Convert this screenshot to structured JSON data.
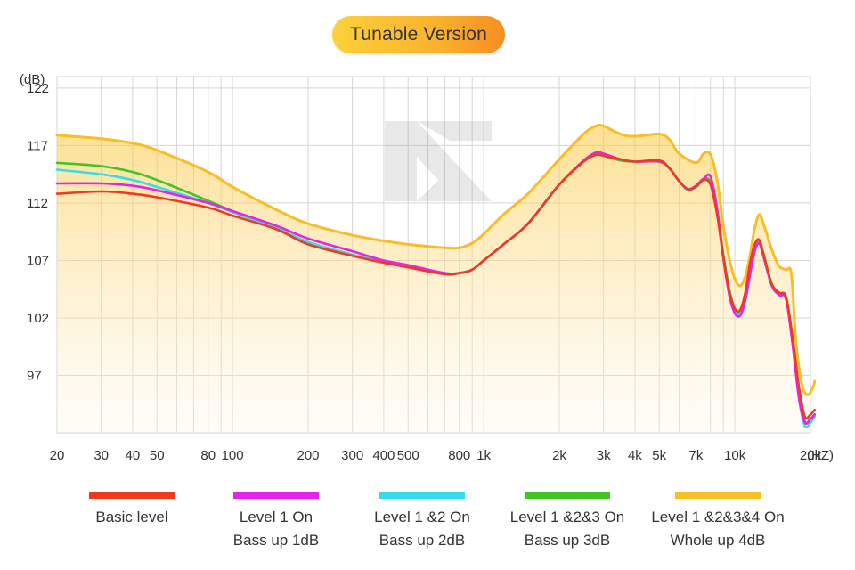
{
  "title": "Tunable Version",
  "chart_data": {
    "type": "line",
    "x_scale": "log",
    "xlim": [
      20,
      20000
    ],
    "ylim": [
      92,
      123
    ],
    "y_unit": "(dB)",
    "x_unit": "(HZ)",
    "y_ticks": [
      {
        "v": 122,
        "label": "122"
      },
      {
        "v": 117,
        "label": "117"
      },
      {
        "v": 112,
        "label": "112"
      },
      {
        "v": 107,
        "label": "107"
      },
      {
        "v": 102,
        "label": "102"
      },
      {
        "v": 97,
        "label": "97"
      }
    ],
    "x_ticks": [
      {
        "v": 20,
        "label": "20"
      },
      {
        "v": 30,
        "label": "30"
      },
      {
        "v": 40,
        "label": "40"
      },
      {
        "v": 50,
        "label": "50"
      },
      {
        "v": 80,
        "label": "80"
      },
      {
        "v": 100,
        "label": "100"
      },
      {
        "v": 200,
        "label": "200"
      },
      {
        "v": 300,
        "label": "300"
      },
      {
        "v": 400,
        "label": "400"
      },
      {
        "v": 500,
        "label": "500"
      },
      {
        "v": 800,
        "label": "800"
      },
      {
        "v": 1000,
        "label": "1k"
      },
      {
        "v": 2000,
        "label": "2k"
      },
      {
        "v": 3000,
        "label": "3k"
      },
      {
        "v": 4000,
        "label": "4k"
      },
      {
        "v": 5000,
        "label": "5k"
      },
      {
        "v": 7000,
        "label": "7k"
      },
      {
        "v": 10000,
        "label": "10k"
      },
      {
        "v": 20000,
        "label": "20k"
      }
    ],
    "grid_x": [
      20,
      30,
      40,
      50,
      60,
      70,
      80,
      90,
      100,
      200,
      300,
      400,
      500,
      600,
      700,
      800,
      900,
      1000,
      2000,
      3000,
      4000,
      5000,
      6000,
      7000,
      8000,
      9000,
      10000,
      20000
    ],
    "series": [
      {
        "name": "Level 1 &2&3&4 On Whole up 4dB",
        "color": "#f9bd25",
        "points": [
          [
            20,
            117.9
          ],
          [
            30,
            117.6
          ],
          [
            40,
            117.2
          ],
          [
            50,
            116.6
          ],
          [
            80,
            114.7
          ],
          [
            100,
            113.4
          ],
          [
            150,
            111.4
          ],
          [
            200,
            110.2
          ],
          [
            300,
            109.2
          ],
          [
            400,
            108.7
          ],
          [
            500,
            108.4
          ],
          [
            700,
            108.1
          ],
          [
            800,
            108.1
          ],
          [
            900,
            108.5
          ],
          [
            1000,
            109.3
          ],
          [
            1200,
            111.0
          ],
          [
            1500,
            112.8
          ],
          [
            2000,
            115.8
          ],
          [
            2500,
            118.0
          ],
          [
            2800,
            118.7
          ],
          [
            3000,
            118.7
          ],
          [
            3500,
            118.0
          ],
          [
            4000,
            117.8
          ],
          [
            5000,
            118.0
          ],
          [
            5500,
            117.5
          ],
          [
            6000,
            116.3
          ],
          [
            7000,
            115.5
          ],
          [
            7500,
            116.3
          ],
          [
            8000,
            116.2
          ],
          [
            8500,
            114.0
          ],
          [
            9000,
            110.0
          ],
          [
            9500,
            107.2
          ],
          [
            10000,
            105.4
          ],
          [
            10500,
            104.8
          ],
          [
            11000,
            105.6
          ],
          [
            11500,
            107.5
          ],
          [
            12000,
            109.8
          ],
          [
            12500,
            111.0
          ],
          [
            13000,
            110.2
          ],
          [
            14000,
            108.0
          ],
          [
            15000,
            106.5
          ],
          [
            16000,
            106.2
          ],
          [
            16800,
            105.8
          ],
          [
            17500,
            100.0
          ],
          [
            18500,
            96.2
          ],
          [
            19500,
            95.3
          ],
          [
            20500,
            96.0
          ],
          [
            21000,
            96.5
          ]
        ]
      },
      {
        "name": "Level 1 &2&3 On Bass up 3dB",
        "color": "#43c425",
        "points": [
          [
            20,
            115.5
          ],
          [
            30,
            115.2
          ],
          [
            40,
            114.7
          ],
          [
            50,
            114.0
          ],
          [
            80,
            112.2
          ],
          [
            100,
            111.3
          ],
          [
            150,
            109.8
          ],
          [
            200,
            108.6
          ],
          [
            300,
            107.5
          ],
          [
            400,
            106.9
          ],
          [
            500,
            106.5
          ],
          [
            700,
            105.9
          ],
          [
            800,
            105.9
          ],
          [
            900,
            106.2
          ],
          [
            1000,
            107.0
          ],
          [
            1200,
            108.4
          ],
          [
            1500,
            110.2
          ],
          [
            2000,
            113.6
          ],
          [
            2500,
            115.6
          ],
          [
            2800,
            116.2
          ],
          [
            3000,
            116.1
          ],
          [
            3500,
            115.7
          ],
          [
            4000,
            115.6
          ],
          [
            5000,
            115.6
          ],
          [
            5500,
            115.0
          ],
          [
            6000,
            113.9
          ],
          [
            6500,
            113.2
          ],
          [
            7000,
            113.5
          ],
          [
            7500,
            114.1
          ],
          [
            8000,
            113.8
          ],
          [
            8500,
            111.2
          ],
          [
            9000,
            107.5
          ],
          [
            9500,
            104.5
          ],
          [
            10000,
            102.8
          ],
          [
            10500,
            102.5
          ],
          [
            11000,
            104.0
          ],
          [
            11500,
            106.5
          ],
          [
            12000,
            108.2
          ],
          [
            12500,
            108.7
          ],
          [
            13000,
            107.5
          ],
          [
            14000,
            105.0
          ],
          [
            15000,
            104.2
          ],
          [
            16000,
            103.8
          ],
          [
            17000,
            100.0
          ],
          [
            18000,
            95.5
          ],
          [
            19000,
            93.0
          ],
          [
            20000,
            93.2
          ],
          [
            21000,
            93.6
          ]
        ]
      },
      {
        "name": "Level 1 &2 On Bass up 2dB",
        "color": "#33ddea",
        "points": [
          [
            20,
            114.9
          ],
          [
            30,
            114.5
          ],
          [
            40,
            114.0
          ],
          [
            50,
            113.4
          ],
          [
            80,
            112.0
          ],
          [
            100,
            111.2
          ],
          [
            150,
            109.8
          ],
          [
            200,
            108.6
          ],
          [
            300,
            107.5
          ],
          [
            400,
            106.9
          ],
          [
            500,
            106.5
          ],
          [
            700,
            105.9
          ],
          [
            800,
            105.9
          ],
          [
            900,
            106.2
          ],
          [
            1000,
            107.0
          ],
          [
            1200,
            108.4
          ],
          [
            1500,
            110.2
          ],
          [
            2000,
            113.6
          ],
          [
            2500,
            115.6
          ],
          [
            2800,
            116.2
          ],
          [
            3000,
            116.2
          ],
          [
            3500,
            115.8
          ],
          [
            4000,
            115.6
          ],
          [
            5000,
            115.6
          ],
          [
            5500,
            115.0
          ],
          [
            6000,
            113.9
          ],
          [
            6500,
            113.1
          ],
          [
            7000,
            113.4
          ],
          [
            7500,
            114.0
          ],
          [
            8000,
            113.6
          ],
          [
            8500,
            111.0
          ],
          [
            9000,
            107.2
          ],
          [
            9500,
            104.3
          ],
          [
            10000,
            102.6
          ],
          [
            10500,
            102.4
          ],
          [
            11000,
            103.9
          ],
          [
            11500,
            106.3
          ],
          [
            12000,
            108.0
          ],
          [
            12500,
            108.5
          ],
          [
            13000,
            107.3
          ],
          [
            14000,
            104.8
          ],
          [
            15000,
            104.0
          ],
          [
            16000,
            103.6
          ],
          [
            17000,
            99.6
          ],
          [
            18000,
            95.0
          ],
          [
            19000,
            92.6
          ],
          [
            20000,
            92.9
          ],
          [
            21000,
            93.4
          ]
        ]
      },
      {
        "name": "Level 1 On Bass up 1dB",
        "color": "#e624e6",
        "points": [
          [
            20,
            113.7
          ],
          [
            30,
            113.7
          ],
          [
            40,
            113.5
          ],
          [
            50,
            113.1
          ],
          [
            80,
            112.0
          ],
          [
            100,
            111.3
          ],
          [
            150,
            110.0
          ],
          [
            200,
            108.9
          ],
          [
            300,
            107.8
          ],
          [
            400,
            107.0
          ],
          [
            500,
            106.6
          ],
          [
            700,
            105.9
          ],
          [
            800,
            105.9
          ],
          [
            900,
            106.2
          ],
          [
            1000,
            107.0
          ],
          [
            1200,
            108.4
          ],
          [
            1500,
            110.2
          ],
          [
            2000,
            113.6
          ],
          [
            2500,
            115.7
          ],
          [
            2800,
            116.4
          ],
          [
            3000,
            116.3
          ],
          [
            3500,
            115.8
          ],
          [
            4000,
            115.6
          ],
          [
            5000,
            115.6
          ],
          [
            5500,
            115.0
          ],
          [
            6000,
            113.9
          ],
          [
            6500,
            113.2
          ],
          [
            7000,
            113.5
          ],
          [
            7500,
            114.1
          ],
          [
            8000,
            114.3
          ],
          [
            8500,
            111.5
          ],
          [
            9000,
            107.2
          ],
          [
            9500,
            104.0
          ],
          [
            10000,
            102.4
          ],
          [
            10500,
            102.2
          ],
          [
            11000,
            103.5
          ],
          [
            11500,
            105.8
          ],
          [
            12000,
            107.8
          ],
          [
            12500,
            108.5
          ],
          [
            13000,
            107.4
          ],
          [
            14000,
            104.9
          ],
          [
            15000,
            104.0
          ],
          [
            16000,
            103.6
          ],
          [
            17000,
            99.6
          ],
          [
            18000,
            95.0
          ],
          [
            19000,
            92.9
          ],
          [
            20000,
            93.2
          ],
          [
            21000,
            93.6
          ]
        ]
      },
      {
        "name": "Basic level",
        "color": "#f03a1f",
        "points": [
          [
            20,
            112.8
          ],
          [
            30,
            113.0
          ],
          [
            40,
            112.8
          ],
          [
            50,
            112.5
          ],
          [
            80,
            111.6
          ],
          [
            100,
            110.9
          ],
          [
            150,
            109.7
          ],
          [
            200,
            108.4
          ],
          [
            300,
            107.4
          ],
          [
            400,
            106.8
          ],
          [
            500,
            106.4
          ],
          [
            700,
            105.8
          ],
          [
            800,
            105.9
          ],
          [
            900,
            106.2
          ],
          [
            1000,
            107.0
          ],
          [
            1200,
            108.4
          ],
          [
            1500,
            110.2
          ],
          [
            2000,
            113.6
          ],
          [
            2500,
            115.6
          ],
          [
            2800,
            116.2
          ],
          [
            3000,
            116.1
          ],
          [
            3500,
            115.8
          ],
          [
            4000,
            115.6
          ],
          [
            5000,
            115.7
          ],
          [
            5500,
            115.0
          ],
          [
            6000,
            113.9
          ],
          [
            6500,
            113.2
          ],
          [
            7000,
            113.4
          ],
          [
            7500,
            114.0
          ],
          [
            8000,
            113.6
          ],
          [
            8500,
            111.0
          ],
          [
            9000,
            107.3
          ],
          [
            9500,
            104.3
          ],
          [
            10000,
            102.8
          ],
          [
            10500,
            102.7
          ],
          [
            11000,
            104.2
          ],
          [
            11500,
            106.8
          ],
          [
            12000,
            108.4
          ],
          [
            12500,
            108.8
          ],
          [
            13000,
            107.6
          ],
          [
            14000,
            105.0
          ],
          [
            15000,
            104.2
          ],
          [
            16000,
            103.8
          ],
          [
            17000,
            100.2
          ],
          [
            18000,
            96.0
          ],
          [
            19000,
            93.4
          ],
          [
            20000,
            93.6
          ],
          [
            21000,
            94.0
          ]
        ]
      }
    ]
  },
  "legend": [
    {
      "line1": "Basic level",
      "line2": "",
      "color": "#f03a1f"
    },
    {
      "line1": "Level 1 On",
      "line2": "Bass up 1dB",
      "color": "#e624e6"
    },
    {
      "line1": "Level 1 &2 On",
      "line2": "Bass up 2dB",
      "color": "#33ddea"
    },
    {
      "line1": "Level 1 &2&3 On",
      "line2": "Bass up 3dB",
      "color": "#43c425"
    },
    {
      "line1": "Level 1 &2&3&4 On",
      "line2": "Whole up 4dB",
      "color": "#f9bd25"
    }
  ]
}
